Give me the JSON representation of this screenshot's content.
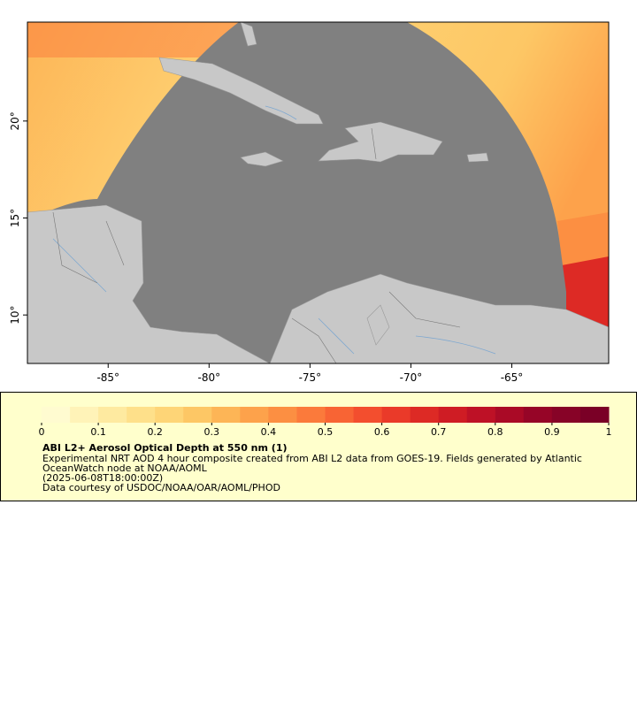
{
  "map": {
    "xlim": [
      -89,
      -60.2
    ],
    "ylim": [
      7.5,
      25.1
    ],
    "xticks": [
      {
        "value": -85,
        "label": "-85°"
      },
      {
        "value": -80,
        "label": "-80°"
      },
      {
        "value": -75,
        "label": "-75°"
      },
      {
        "value": -70,
        "label": "-70°"
      },
      {
        "value": -65,
        "label": "-65°"
      }
    ],
    "yticks": [
      {
        "value": 10,
        "label": "10°"
      },
      {
        "value": 15,
        "label": "15°"
      },
      {
        "value": 20,
        "label": "20°"
      }
    ]
  },
  "colorbar": {
    "lim": [
      0,
      1
    ],
    "ticks": [
      0,
      0.1,
      0.2,
      0.3,
      0.4,
      0.5,
      0.6,
      0.7,
      0.8,
      0.9,
      1
    ],
    "colors": [
      "#fffbd0",
      "#fff3b8",
      "#feeaa0",
      "#fee08a",
      "#fed577",
      "#fdc765",
      "#fdb556",
      "#fda24b",
      "#fc8f42",
      "#fb7a3b",
      "#f86434",
      "#f34e2e",
      "#ea3a29",
      "#dd2a25",
      "#cf1c24",
      "#be1126",
      "#aa0a26",
      "#960527",
      "#870327",
      "#7a0026"
    ]
  },
  "legend": {
    "title": "ABI L2+ Aerosol Optical Depth at 550 nm (1)",
    "description": [
      "Experimental NRT AOD 4 hour composite created from ABI L2 data from GOES-19. Fields generated by Atlantic",
      "OceanWatch node at NOAA/AOML"
    ],
    "time": "(2025-06-08T18:00:00Z)",
    "credit": "Data courtesy of USDOC/NOAA/OAR/AOML/PHOD"
  }
}
